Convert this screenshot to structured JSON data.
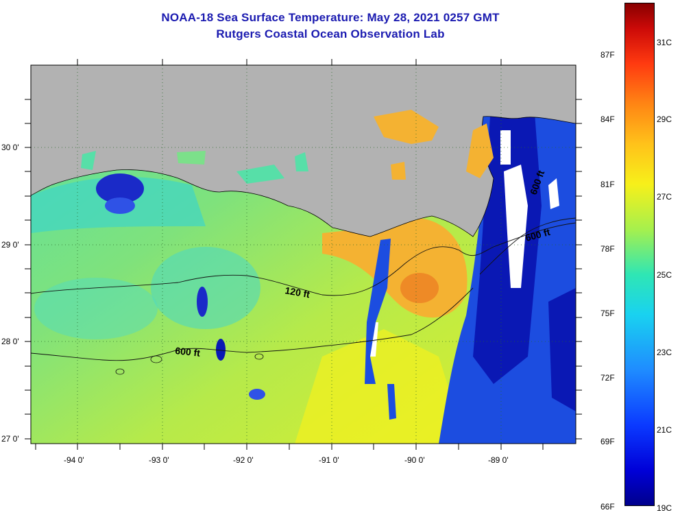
{
  "title_line1": "NOAA-18 Sea Surface Temperature:  May 28, 2021 0257 GMT",
  "title_line2": "Rutgers Coastal Ocean Observation Lab",
  "lat_labels": [
    "30 0'",
    "29 0'",
    "28 0'",
    "27 0'"
  ],
  "lon_labels": [
    "-94 0'",
    "-93 0'",
    "-92 0'",
    "-91 0'",
    "-90 0'",
    "-89 0'"
  ],
  "contours": {
    "c120": "120 ft",
    "c600": "600 ft",
    "c600_east": "600 ft",
    "c600_ne": "600 ft"
  },
  "colorbar": {
    "fahrenheit": [
      "87F",
      "84F",
      "81F",
      "78F",
      "75F",
      "72F",
      "69F",
      "66F"
    ],
    "celsius": [
      "31C",
      "29C",
      "27C",
      "25C",
      "23C",
      "21C",
      "19C"
    ],
    "colors": [
      "#00008c",
      "#0000d8",
      "#1f8cff",
      "#19d2f0",
      "#a6f04d",
      "#f7f01a",
      "#ffc21a",
      "#ff8514",
      "#cc0a08",
      "#880000"
    ]
  },
  "map": {
    "land_color": "#b2b2b2",
    "ocean_base": "#6fe08a",
    "warm_color": "#f5a02a",
    "cold_color": "#0a1cc8",
    "no_data": "#ffffff"
  }
}
